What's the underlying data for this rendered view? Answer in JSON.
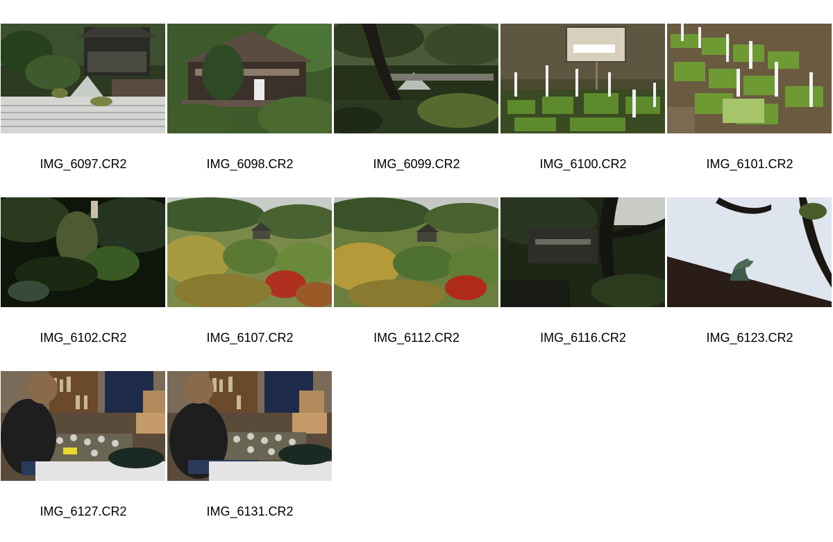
{
  "thumbnails": [
    {
      "filename": "IMG_6097.CR2",
      "subject": "zen-garden-pavilion"
    },
    {
      "filename": "IMG_6098.CR2",
      "subject": "temple-building"
    },
    {
      "filename": "IMG_6099.CR2",
      "subject": "garden-tree-sand-cone"
    },
    {
      "filename": "IMG_6100.CR2",
      "subject": "moss-display-sign"
    },
    {
      "filename": "IMG_6101.CR2",
      "subject": "moss-tray-labels"
    },
    {
      "filename": "IMG_6102.CR2",
      "subject": "dark-forest-path"
    },
    {
      "filename": "IMG_6107.CR2",
      "subject": "autumn-hillside-pavilion"
    },
    {
      "filename": "IMG_6112.CR2",
      "subject": "autumn-hillside-pavilion-2"
    },
    {
      "filename": "IMG_6116.CR2",
      "subject": "pine-tree-pavilion"
    },
    {
      "filename": "IMG_6123.CR2",
      "subject": "roof-phoenix-sky"
    },
    {
      "filename": "IMG_6127.CR2",
      "subject": "person-tea-room"
    },
    {
      "filename": "IMG_6131.CR2",
      "subject": "person-tea-room-2"
    }
  ]
}
